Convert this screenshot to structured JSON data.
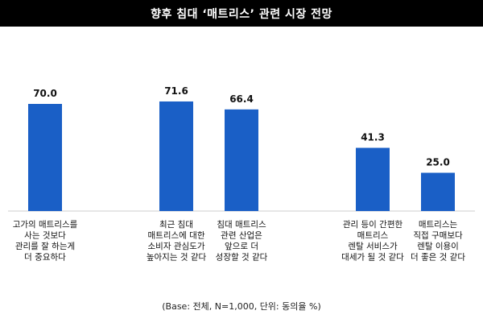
{
  "title": "향후 침대 ‘매트리스’ 관련 시장 전망",
  "footnote": "(Base: 전체, N=1,000, 단위: 동의율 %)",
  "colors": {
    "bar": "#1a5fc6",
    "title_bg": "#000000",
    "title_text": "#ffffff",
    "axis": "#cccccc"
  },
  "chart_data": {
    "type": "bar",
    "categories": [
      [
        "고가의 매트리스를",
        "사는 것보다",
        "관리를 잘 하는게",
        "더 중요하다"
      ],
      [
        "최근 침대",
        "매트리스에 대한",
        "소비자 관심도가",
        "높아지는 것 같다"
      ],
      [
        "침대 매트리스",
        "관련 산업은",
        "앞으로 더",
        "성장할 것 같다"
      ],
      [
        "관리 등이 간편한",
        "매트리스",
        "렌탈 서비스가",
        "대세가 될 것 같다"
      ],
      [
        "매트리스는",
        "직접 구매보다",
        "렌탈 이용이",
        "더 좋은 것 같다"
      ]
    ],
    "values": [
      70.0,
      71.6,
      66.4,
      41.3,
      25.0
    ],
    "value_labels": [
      "70.0",
      "71.6",
      "66.4",
      "41.3",
      "25.0"
    ],
    "ylim": [
      0,
      100
    ]
  }
}
